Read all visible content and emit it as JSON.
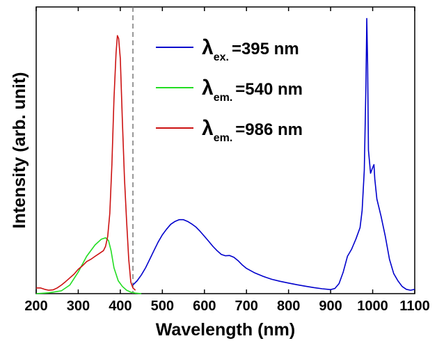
{
  "chart_data": {
    "type": "line",
    "xlabel": "Wavelength (nm)",
    "ylabel": "Intensity (arb. unit)",
    "xlim": [
      200,
      1100
    ],
    "ylim": [
      0,
      1.0
    ],
    "x_ticks": [
      "200",
      "300",
      "400",
      "500",
      "600",
      "700",
      "800",
      "900",
      "1000",
      "1100"
    ],
    "grid": false,
    "legend_position": "top-right",
    "marker_line_x": 430,
    "series": [
      {
        "name_main": "λ",
        "name_sub": "ex.",
        "name_rest": "=395 nm",
        "color": "#0000cc",
        "points": [
          [
            430,
            0.03
          ],
          [
            440,
            0.045
          ],
          [
            450,
            0.065
          ],
          [
            460,
            0.09
          ],
          [
            470,
            0.12
          ],
          [
            480,
            0.15
          ],
          [
            490,
            0.18
          ],
          [
            500,
            0.205
          ],
          [
            510,
            0.225
          ],
          [
            520,
            0.242
          ],
          [
            530,
            0.252
          ],
          [
            540,
            0.258
          ],
          [
            550,
            0.258
          ],
          [
            560,
            0.252
          ],
          [
            570,
            0.243
          ],
          [
            580,
            0.232
          ],
          [
            590,
            0.217
          ],
          [
            600,
            0.2
          ],
          [
            610,
            0.183
          ],
          [
            620,
            0.165
          ],
          [
            630,
            0.15
          ],
          [
            640,
            0.137
          ],
          [
            650,
            0.132
          ],
          [
            660,
            0.133
          ],
          [
            670,
            0.127
          ],
          [
            680,
            0.115
          ],
          [
            690,
            0.1
          ],
          [
            700,
            0.088
          ],
          [
            720,
            0.072
          ],
          [
            740,
            0.06
          ],
          [
            760,
            0.05
          ],
          [
            780,
            0.043
          ],
          [
            800,
            0.037
          ],
          [
            820,
            0.031
          ],
          [
            840,
            0.026
          ],
          [
            860,
            0.021
          ],
          [
            880,
            0.017
          ],
          [
            900,
            0.014
          ],
          [
            910,
            0.018
          ],
          [
            920,
            0.035
          ],
          [
            930,
            0.075
          ],
          [
            940,
            0.13
          ],
          [
            950,
            0.155
          ],
          [
            960,
            0.19
          ],
          [
            970,
            0.23
          ],
          [
            975,
            0.29
          ],
          [
            980,
            0.43
          ],
          [
            984,
            0.73
          ],
          [
            986,
            0.96
          ],
          [
            988,
            0.8
          ],
          [
            990,
            0.5
          ],
          [
            995,
            0.42
          ],
          [
            1000,
            0.44
          ],
          [
            1003,
            0.45
          ],
          [
            1005,
            0.4
          ],
          [
            1010,
            0.33
          ],
          [
            1020,
            0.27
          ],
          [
            1030,
            0.2
          ],
          [
            1040,
            0.12
          ],
          [
            1050,
            0.07
          ],
          [
            1060,
            0.045
          ],
          [
            1070,
            0.025
          ],
          [
            1080,
            0.015
          ],
          [
            1090,
            0.012
          ],
          [
            1100,
            0.015
          ]
        ]
      },
      {
        "name_main": "λ",
        "name_sub": "em.",
        "name_rest": "=540 nm",
        "color": "#22dd22",
        "points": [
          [
            200,
            0.0
          ],
          [
            230,
            0.003
          ],
          [
            260,
            0.01
          ],
          [
            280,
            0.03
          ],
          [
            300,
            0.075
          ],
          [
            320,
            0.13
          ],
          [
            340,
            0.17
          ],
          [
            355,
            0.19
          ],
          [
            365,
            0.195
          ],
          [
            372,
            0.185
          ],
          [
            378,
            0.15
          ],
          [
            385,
            0.09
          ],
          [
            395,
            0.045
          ],
          [
            405,
            0.025
          ],
          [
            415,
            0.012
          ],
          [
            425,
            0.005
          ],
          [
            435,
            0.002
          ],
          [
            450,
            0.0
          ]
        ]
      },
      {
        "name_main": "λ",
        "name_sub": "em.",
        "name_rest": "=986 nm",
        "color": "#cc1111",
        "points": [
          [
            200,
            0.02
          ],
          [
            210,
            0.02
          ],
          [
            220,
            0.015
          ],
          [
            230,
            0.012
          ],
          [
            240,
            0.013
          ],
          [
            250,
            0.02
          ],
          [
            260,
            0.03
          ],
          [
            270,
            0.042
          ],
          [
            280,
            0.055
          ],
          [
            290,
            0.068
          ],
          [
            300,
            0.085
          ],
          [
            310,
            0.097
          ],
          [
            320,
            0.112
          ],
          [
            330,
            0.12
          ],
          [
            340,
            0.13
          ],
          [
            350,
            0.14
          ],
          [
            360,
            0.15
          ],
          [
            365,
            0.165
          ],
          [
            370,
            0.2
          ],
          [
            375,
            0.28
          ],
          [
            380,
            0.45
          ],
          [
            385,
            0.68
          ],
          [
            390,
            0.84
          ],
          [
            393,
            0.9
          ],
          [
            396,
            0.89
          ],
          [
            400,
            0.82
          ],
          [
            405,
            0.6
          ],
          [
            410,
            0.4
          ],
          [
            415,
            0.25
          ],
          [
            420,
            0.12
          ],
          [
            425,
            0.04
          ],
          [
            430,
            0.02
          ],
          [
            436,
            0.012
          ]
        ]
      }
    ]
  }
}
